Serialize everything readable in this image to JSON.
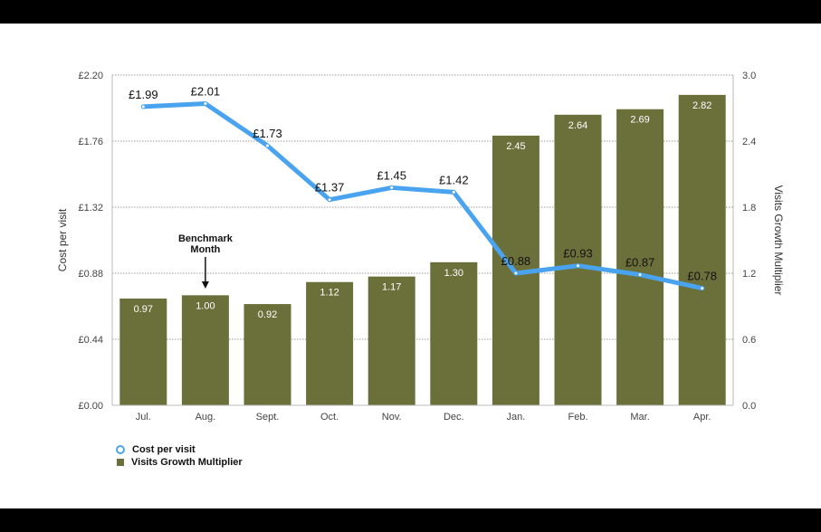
{
  "chart_data": {
    "type": "bar",
    "categories": [
      "Jul.",
      "Aug.",
      "Sept.",
      "Oct.",
      "Nov.",
      "Dec.",
      "Jan.",
      "Feb.",
      "Mar.",
      "Apr."
    ],
    "series": [
      {
        "name": "Cost per visit",
        "type": "line",
        "axis": "left",
        "color": "#4aa3ee",
        "values": [
          1.99,
          2.01,
          1.73,
          1.37,
          1.45,
          1.42,
          0.88,
          0.93,
          0.87,
          0.78
        ],
        "labels": [
          "£1.99",
          "£2.01",
          "£1.73",
          "£1.37",
          "£1.45",
          "£1.42",
          "£0.88",
          "£0.93",
          "£0.87",
          "£0.78"
        ]
      },
      {
        "name": "Visits Growth Multiplier",
        "type": "bar",
        "axis": "right",
        "color": "#6b703b",
        "values": [
          0.97,
          1.0,
          0.92,
          1.12,
          1.17,
          1.3,
          2.45,
          2.64,
          2.69,
          2.82
        ],
        "labels": [
          "0.97",
          "1.00",
          "0.92",
          "1.12",
          "1.17",
          "1.30",
          "2.45",
          "2.64",
          "2.69",
          "2.82"
        ]
      }
    ],
    "ylabel": "Cost per visit",
    "y2label": "Visits Growth Multiplier",
    "ylim": [
      0,
      2.2
    ],
    "y2lim": [
      0,
      3.0
    ],
    "yticks": [
      "£0.00",
      "£0.44",
      "£0.88",
      "£1.32",
      "£1.76",
      "£2.20"
    ],
    "y2ticks": [
      "0.0",
      "0.6",
      "1.2",
      "1.8",
      "2.4",
      "3.0"
    ],
    "grid": true,
    "legend_position": "bottom-left",
    "annotation": {
      "category": "Aug.",
      "lines": [
        "Benchmark",
        "Month"
      ]
    }
  }
}
